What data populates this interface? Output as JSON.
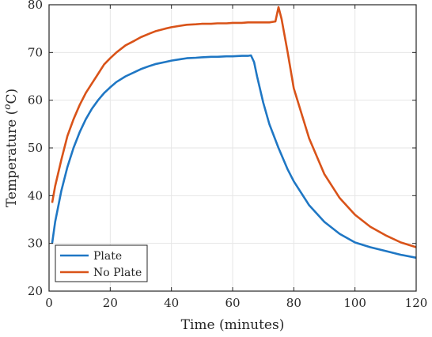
{
  "chart_data": {
    "type": "line",
    "xlabel": "Time (minutes)",
    "ylabel": "Temperature (",
    "ylabel_sup": "o",
    "ylabel_unit": "C)",
    "xlim": [
      0,
      120
    ],
    "ylim": [
      20,
      80
    ],
    "xticks": [
      0,
      20,
      40,
      60,
      80,
      100,
      120
    ],
    "yticks": [
      20,
      30,
      40,
      50,
      60,
      70,
      80
    ],
    "grid": true,
    "legend_position": "bottom-left",
    "series": [
      {
        "name": "Plate",
        "color": "#1f77c4",
        "x": [
          1,
          2,
          4,
          6,
          8,
          10,
          12,
          14,
          16,
          18,
          20,
          22,
          25,
          28,
          30,
          33,
          35,
          38,
          40,
          43,
          45,
          48,
          50,
          53,
          55,
          58,
          60,
          63,
          65,
          66,
          67,
          68,
          70,
          72,
          75,
          78,
          80,
          85,
          90,
          95,
          100,
          105,
          110,
          115,
          120
        ],
        "y": [
          30.0,
          34.5,
          41.0,
          46.0,
          50.0,
          53.3,
          56.0,
          58.2,
          60.0,
          61.5,
          62.7,
          63.8,
          65.0,
          65.9,
          66.5,
          67.2,
          67.6,
          68.0,
          68.3,
          68.6,
          68.8,
          68.9,
          69.0,
          69.1,
          69.1,
          69.2,
          69.2,
          69.3,
          69.3,
          69.4,
          68.0,
          65.0,
          59.5,
          55.0,
          50.0,
          45.5,
          43.0,
          38.0,
          34.5,
          32.0,
          30.2,
          29.2,
          28.4,
          27.6,
          27.0
        ]
      },
      {
        "name": "No Plate",
        "color": "#d95319",
        "x": [
          1,
          2,
          4,
          6,
          8,
          10,
          12,
          14,
          16,
          18,
          20,
          22,
          25,
          28,
          30,
          33,
          35,
          38,
          40,
          43,
          45,
          48,
          50,
          53,
          55,
          58,
          60,
          63,
          65,
          68,
          70,
          72,
          74,
          75,
          76,
          78,
          80,
          85,
          90,
          95,
          100,
          105,
          110,
          115,
          120
        ],
        "y": [
          38.5,
          42.0,
          47.5,
          52.5,
          56.0,
          59.0,
          61.5,
          63.5,
          65.5,
          67.5,
          68.8,
          70.0,
          71.5,
          72.5,
          73.2,
          74.0,
          74.5,
          75.0,
          75.3,
          75.6,
          75.8,
          75.9,
          76.0,
          76.0,
          76.1,
          76.1,
          76.2,
          76.2,
          76.3,
          76.3,
          76.3,
          76.3,
          76.5,
          79.5,
          77.0,
          70.0,
          62.5,
          52.0,
          44.5,
          39.5,
          36.0,
          33.5,
          31.7,
          30.2,
          29.2
        ]
      }
    ]
  }
}
